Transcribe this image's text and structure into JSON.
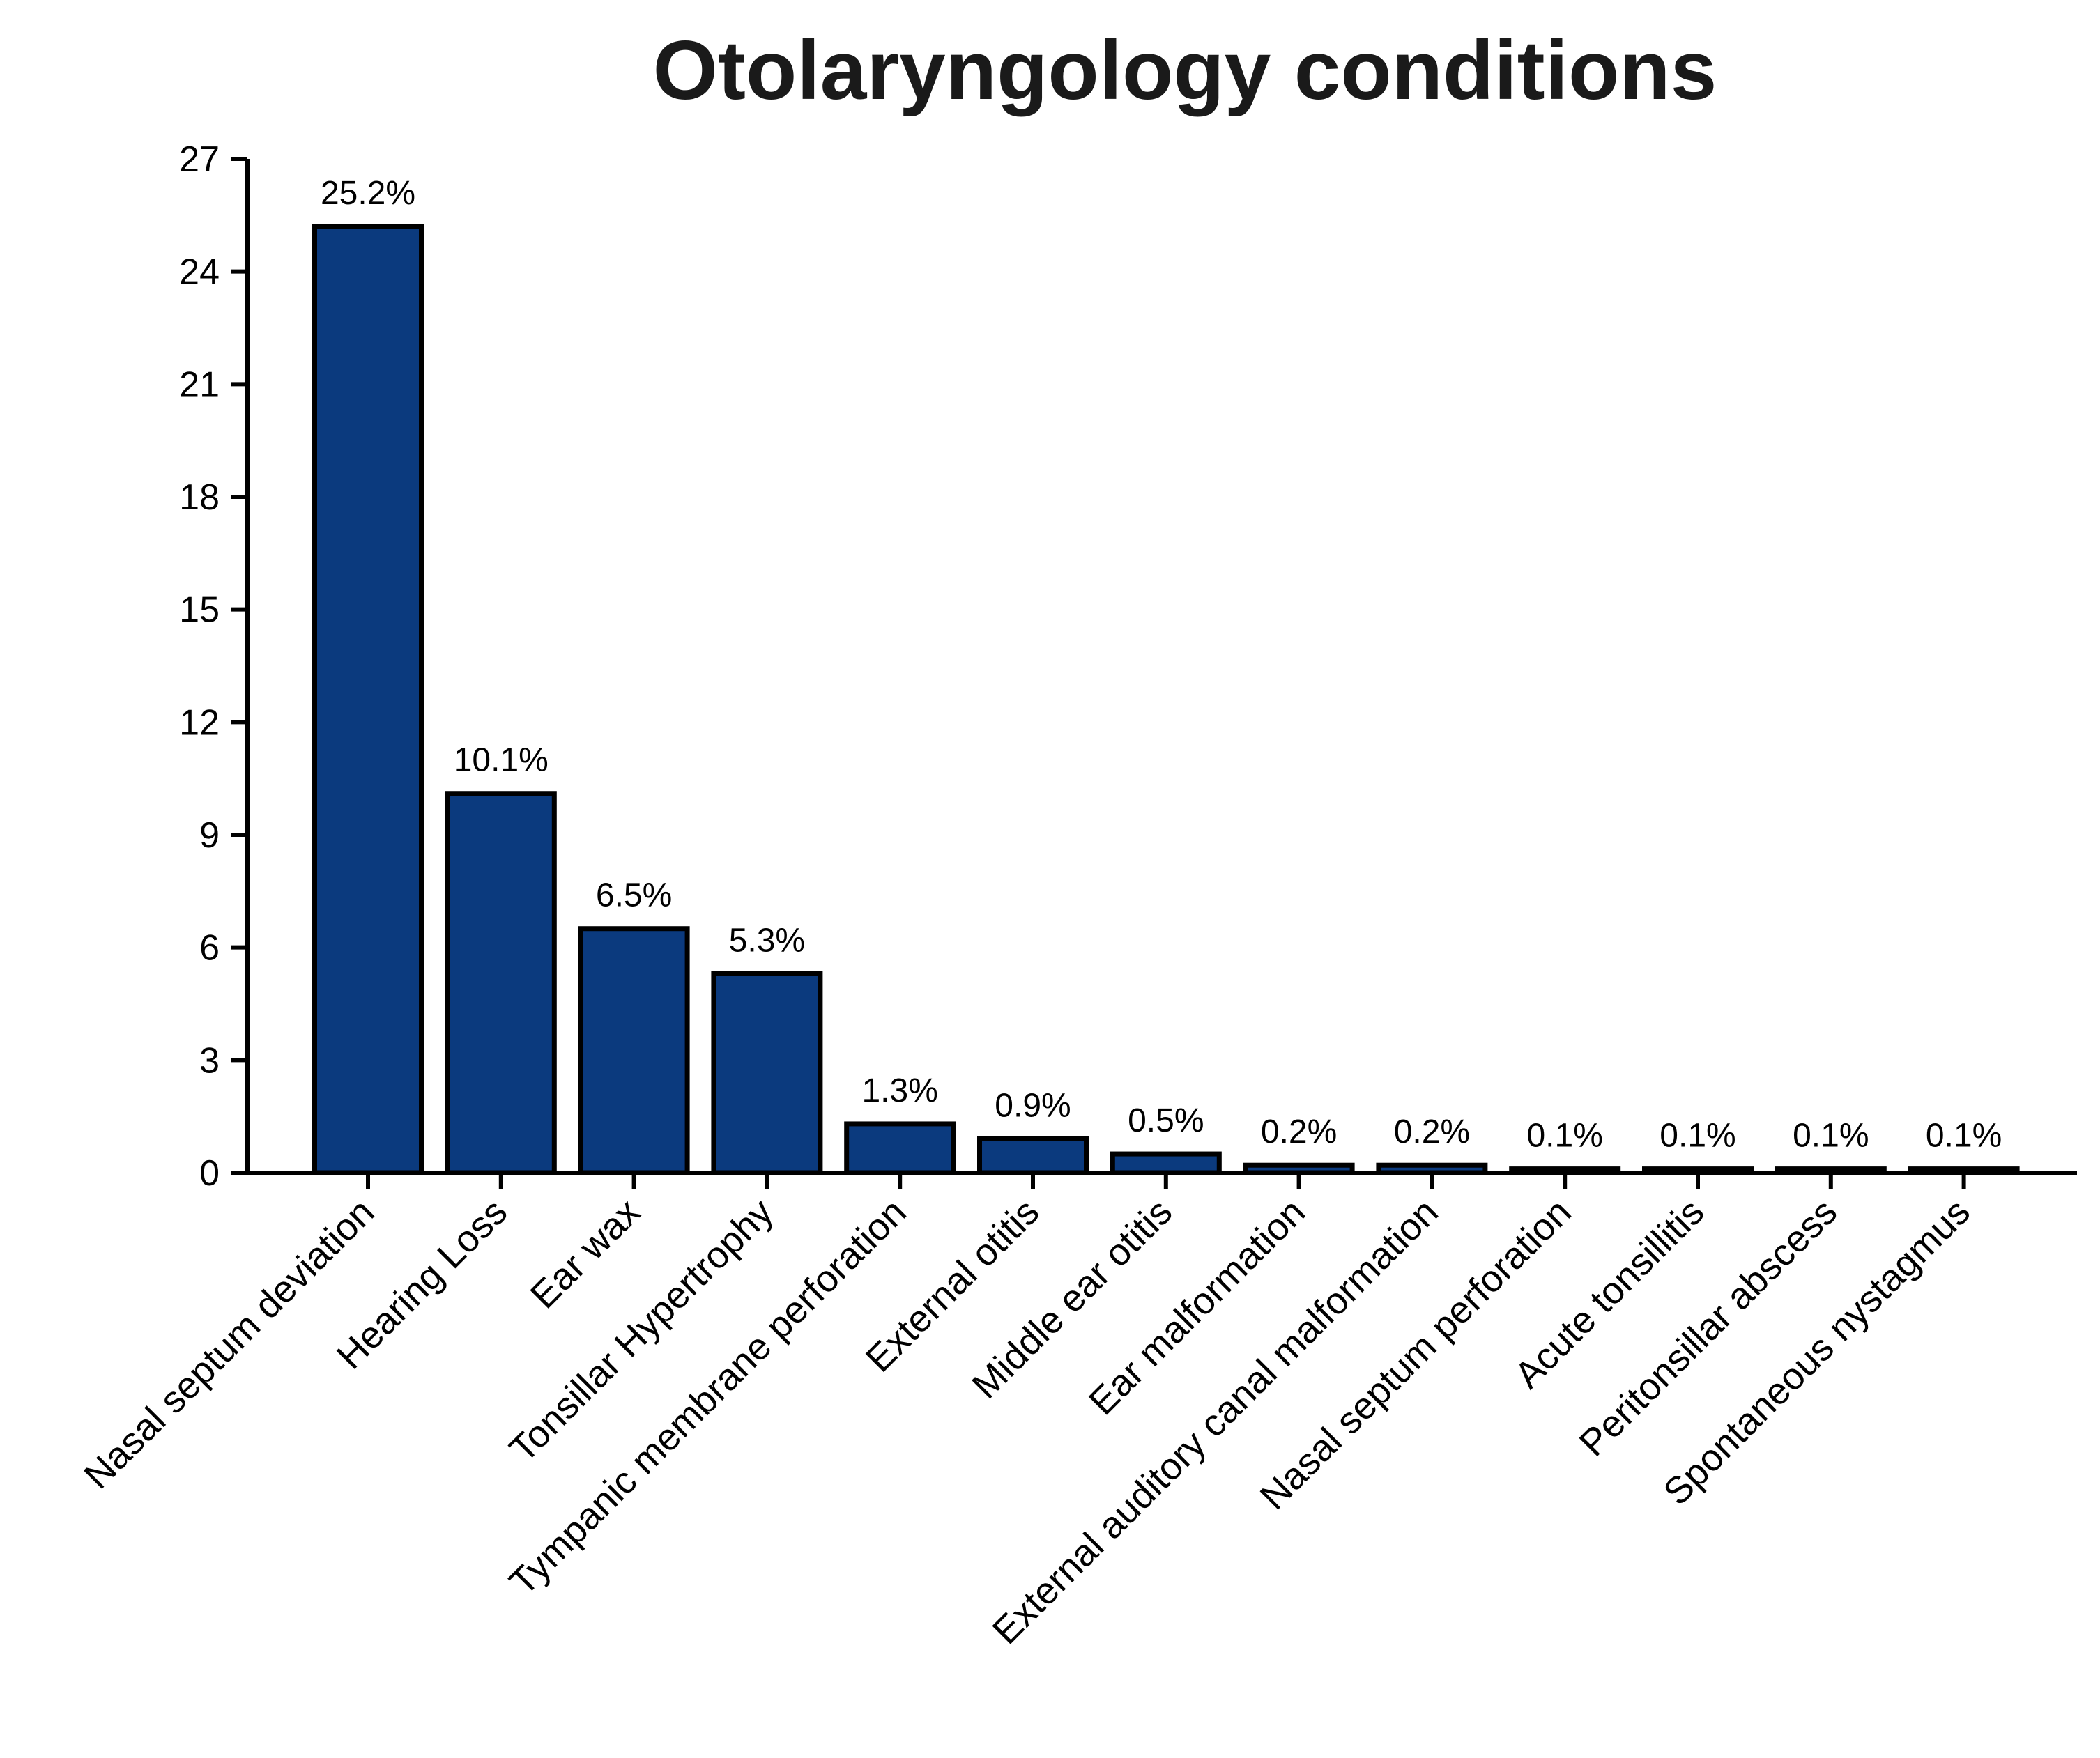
{
  "colors": {
    "bar": "#0b3a7e",
    "outline": "#000000"
  },
  "chart_data": {
    "type": "bar",
    "title": "Otolaryngology conditions",
    "xlabel": "",
    "ylabel": "",
    "ylim": [
      0,
      27
    ],
    "yticks": [
      0,
      3,
      6,
      9,
      12,
      15,
      18,
      21,
      24,
      27
    ],
    "grid": false,
    "legend": "none",
    "categories": [
      "Nasal septum deviation",
      "Hearing Loss",
      "Ear wax",
      "Tonsillar Hypertrophy",
      "Tympanic membrane perforation",
      "External otitis",
      "Middle ear otitis",
      "Ear malformation",
      "External auditory canal malformation",
      "Nasal septum perforation",
      "Acute tonsillitis",
      "Peritonsillar abscess",
      "Spontaneous nystagmus"
    ],
    "values": [
      25.2,
      10.1,
      6.5,
      5.3,
      1.3,
      0.9,
      0.5,
      0.2,
      0.2,
      0.1,
      0.1,
      0.1,
      0.1
    ],
    "data_labels": [
      "25.2%",
      "10.1%",
      "6.5%",
      "5.3%",
      "1.3%",
      "0.9%",
      "0.5%",
      "0.2%",
      "0.2%",
      "0.1%",
      "0.1%",
      "0.1%",
      "0.1%"
    ]
  }
}
